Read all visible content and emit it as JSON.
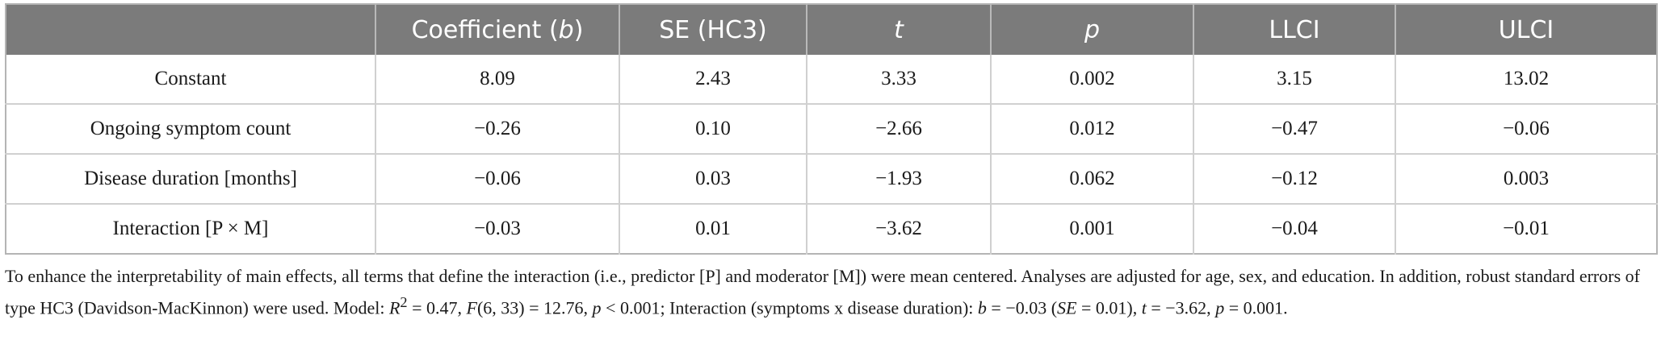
{
  "table": {
    "headers": [
      {
        "label": ""
      },
      {
        "label_pre": "Coefficient (",
        "label_ital": "b",
        "label_post": ")"
      },
      {
        "label": "SE (HC3)"
      },
      {
        "label": "t"
      },
      {
        "label": "p"
      },
      {
        "label": "LLCI"
      },
      {
        "label": "ULCI"
      }
    ],
    "rows": [
      [
        "Constant",
        "8.09",
        "2.43",
        "3.33",
        "0.002",
        "3.15",
        "13.02"
      ],
      [
        "Ongoing symptom count",
        "−0.26",
        "0.10",
        "−2.66",
        "0.012",
        "−0.47",
        "−0.06"
      ],
      [
        "Disease duration [months]",
        "−0.06",
        "0.03",
        "−1.93",
        "0.062",
        "−0.12",
        "0.003"
      ],
      [
        "Interaction [P × M]",
        "−0.03",
        "0.01",
        "−3.62",
        "0.001",
        "−0.04",
        "−0.01"
      ]
    ]
  },
  "note": {
    "line1": "To enhance the interpretability of main effects, all terms that define the interaction (i.e., predictor [P] and moderator [M]) were mean centered. Analyses are adjusted for age, sex, and education. In addition, robust standard errors of type HC3 (Davidson-MacKinnon) were used. Model: ",
    "r2_sym": "R",
    "r2_sup": "2",
    "r2_val": " = 0.47, ",
    "f_sym": "F",
    "f_val": "(6, 33) = 12.76, ",
    "p_sym1": "p",
    "p_val1": " < 0.001; Interaction (symptoms x disease duration): ",
    "b_sym": "b",
    "b_val": " = −0.03 (",
    "se_sym": "SE",
    "se_val": " = 0.01), ",
    "t_sym": "t",
    "t_val": " = −3.62, ",
    "p_sym2": "p",
    "p_val2": " = 0.001."
  }
}
